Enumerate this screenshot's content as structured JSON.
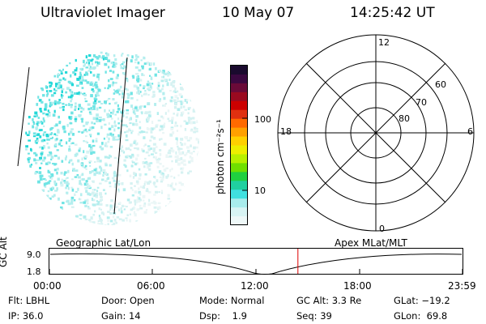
{
  "header": {
    "instrument": "Ultraviolet Imager",
    "date": "10 May 07",
    "time": "14:25:42 UT"
  },
  "colorbar": {
    "unit_label": "photon cm⁻²s⁻¹",
    "ticks": [
      "100",
      "10"
    ],
    "colors": [
      "#1a0a2e",
      "#3a0840",
      "#6a0a38",
      "#9a0a20",
      "#cc0000",
      "#e03010",
      "#ff6a00",
      "#ffa000",
      "#ffd000",
      "#eeee00",
      "#b8f000",
      "#70e000",
      "#20d040",
      "#20d0a0",
      "#40e0e0",
      "#a8ecec",
      "#d8f4f4",
      "#eef8f8"
    ]
  },
  "polar_plot": {
    "mlt_labels": {
      "top": "12",
      "bottom": "0",
      "left": "18",
      "right": "6"
    },
    "lat_labels": [
      "60",
      "70",
      "80"
    ]
  },
  "timeline": {
    "y_axis_label": "GC Alt",
    "y_ticks": [
      "9.0",
      "1.8"
    ],
    "left_caption": "Geographic Lat/Lon",
    "right_caption": "Apex MLat/MLT",
    "x_ticks": [
      "00:00",
      "06:00",
      "12:00",
      "18:00",
      "23:59"
    ],
    "current_time": "14:25:42",
    "current_marker_color": "#dd0000"
  },
  "status": {
    "filter_label": "Flt:",
    "filter_value": "LBHL",
    "ip_label": "IP:",
    "ip_value": "36.0",
    "door_label": "Door:",
    "door_value": "Open",
    "gain_label": "Gain:",
    "gain_value": "14",
    "mode_label": "Mode:",
    "mode_value": "Normal",
    "dsp_label": "Dsp:",
    "dsp_value": "1.9",
    "gcalt_label": "GC Alt:",
    "gcalt_value": "3.3 Re",
    "seq_label": "Seq:",
    "seq_value": "39",
    "glat_label": "GLat:",
    "glat_value": "−19.2",
    "glon_label": "GLon:",
    "glon_value": "69.8"
  }
}
